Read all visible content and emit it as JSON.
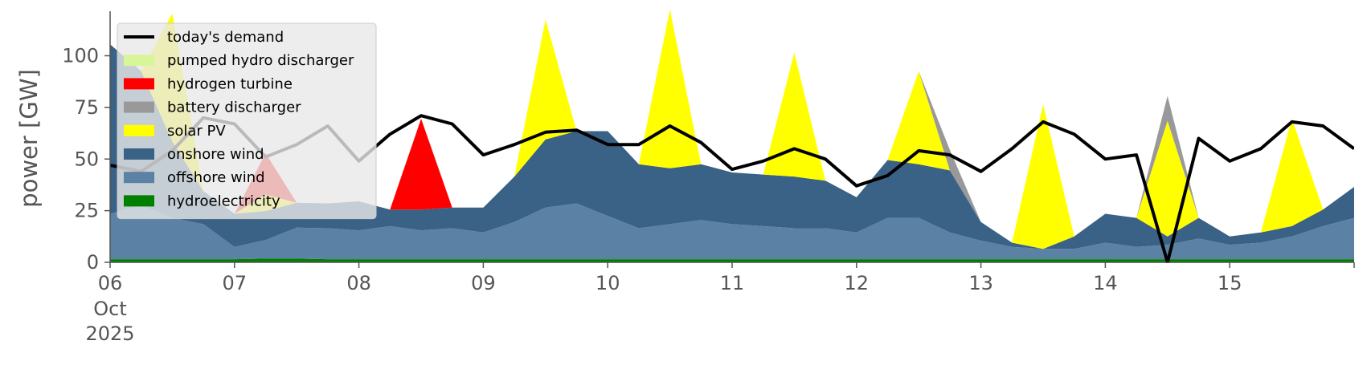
{
  "chart_data": {
    "type": "area",
    "title": "",
    "ylabel": "power [GW]",
    "xlabel": "",
    "ylim": [
      0,
      120
    ],
    "xlim": [
      0,
      240
    ],
    "y_ticks": [
      "0",
      "25",
      "50",
      "75",
      "100"
    ],
    "y_tick_values": [
      0,
      25,
      50,
      75,
      100
    ],
    "x_ticks": [
      {
        "label": "06",
        "sub1": "Oct",
        "sub2": "2025",
        "hour": 0
      },
      {
        "label": "07",
        "hour": 24
      },
      {
        "label": "08",
        "hour": 48
      },
      {
        "label": "09",
        "hour": 72
      },
      {
        "label": "10",
        "hour": 96
      },
      {
        "label": "11",
        "hour": 120
      },
      {
        "label": "12",
        "hour": 144
      },
      {
        "label": "13",
        "hour": 168
      },
      {
        "label": "14",
        "hour": 192
      },
      {
        "label": "15",
        "hour": 216
      }
    ],
    "legend_position": "upper-left",
    "grid": false,
    "x_hours": [
      0,
      6,
      12,
      18,
      24,
      30,
      36,
      42,
      48,
      54,
      60,
      66,
      72,
      78,
      84,
      90,
      96,
      102,
      108,
      114,
      120,
      126,
      132,
      138,
      144,
      150,
      156,
      162,
      168,
      174,
      180,
      186,
      192,
      198,
      204,
      210,
      216,
      222,
      228,
      234,
      240
    ],
    "series": [
      {
        "name": "hydroelectricity",
        "color": "#008000",
        "values": [
          1.5,
          1.5,
          1.5,
          1.5,
          1.5,
          1.8,
          1.8,
          1.5,
          1.5,
          1.5,
          1.5,
          1.5,
          1.5,
          1.5,
          1.5,
          1.5,
          1.5,
          1.5,
          1.5,
          1.5,
          1.5,
          1.5,
          1.5,
          1.5,
          1.5,
          1.5,
          1.5,
          1.5,
          1.5,
          1.5,
          1.5,
          1.5,
          1.5,
          1.5,
          1.5,
          1.5,
          1.5,
          1.5,
          1.5,
          1.5,
          1.5
        ]
      },
      {
        "name": "offshore wind",
        "color": "#5b82a5",
        "values": [
          22,
          26,
          20,
          17,
          6,
          9,
          15,
          15,
          14,
          16,
          14,
          15,
          13,
          18,
          25,
          27,
          21,
          15,
          17,
          19,
          17,
          16,
          15,
          15,
          13,
          20,
          20,
          13,
          9,
          6,
          5,
          5,
          8,
          6,
          7,
          10,
          7,
          8,
          11,
          16,
          20
        ]
      },
      {
        "name": "onshore wind",
        "color": "#3a6186",
        "values": [
          82,
          65,
          37,
          16,
          16,
          14,
          12,
          12,
          14,
          8,
          10,
          10,
          12,
          22,
          33,
          35,
          41,
          31,
          27,
          27,
          25,
          25,
          25,
          23,
          17,
          28,
          26,
          30,
          9,
          2,
          0,
          6,
          14,
          14,
          4,
          10,
          4,
          5,
          5,
          8,
          15
        ]
      },
      {
        "name": "solar PV",
        "color": "#ffff00",
        "values": [
          0,
          0,
          62,
          0,
          0,
          8,
          0,
          0,
          0,
          0,
          0,
          0,
          0,
          0,
          58,
          0,
          0,
          0,
          77,
          0,
          0,
          0,
          60,
          0,
          0,
          0,
          45,
          0,
          0,
          0,
          70,
          0,
          0,
          0,
          56,
          0,
          0,
          0,
          52,
          0,
          0
        ]
      },
      {
        "name": "battery discharger",
        "color": "#999999",
        "values": [
          0,
          0,
          0,
          0,
          0,
          0,
          0,
          0,
          0,
          0,
          0,
          0,
          0,
          0,
          0,
          0,
          0,
          0,
          0,
          0,
          0,
          0,
          0,
          0,
          0,
          0,
          0,
          10,
          0,
          0,
          0,
          0,
          0,
          0,
          12,
          0,
          0,
          0,
          0,
          0,
          0
        ]
      },
      {
        "name": "hydrogen turbine",
        "color": "#ff0000",
        "values": [
          0,
          0,
          0,
          0,
          0,
          20,
          0,
          0,
          0,
          0,
          44,
          0,
          0,
          0,
          0,
          0,
          0,
          0,
          0,
          0,
          0,
          0,
          0,
          0,
          0,
          0,
          0,
          0,
          0,
          0,
          0,
          0,
          0,
          0,
          0,
          0,
          0,
          0,
          0,
          0,
          0
        ]
      },
      {
        "name": "pumped hydro discharger",
        "color": "#d9f59a",
        "values": [
          0,
          0,
          0,
          0,
          0,
          0,
          0,
          0,
          0,
          0,
          0,
          0,
          0,
          0,
          0,
          0,
          0,
          0,
          0,
          0,
          0,
          0,
          0,
          0,
          0,
          0,
          0,
          0,
          0,
          0,
          0,
          0,
          0,
          0,
          0,
          0,
          0,
          0,
          0,
          0,
          0
        ]
      }
    ],
    "demand": {
      "name": "today's demand",
      "color": "#000000",
      "values": [
        47,
        44,
        54,
        70,
        67,
        51,
        57,
        66,
        49,
        62,
        71,
        67,
        52,
        57,
        63,
        64,
        57,
        57,
        66,
        58,
        45,
        49,
        55,
        50,
        37,
        42,
        54,
        52,
        44,
        55,
        68,
        62,
        50,
        52,
        0,
        60,
        49,
        55,
        68,
        66,
        55
      ]
    },
    "legend": [
      {
        "name": "today's demand",
        "color": "#000000",
        "kind": "line"
      },
      {
        "name": "pumped hydro discharger",
        "color": "#d9f59a",
        "kind": "patch"
      },
      {
        "name": "hydrogen turbine",
        "color": "#ff0000",
        "kind": "patch"
      },
      {
        "name": "battery discharger",
        "color": "#999999",
        "kind": "patch"
      },
      {
        "name": "solar PV",
        "color": "#ffff00",
        "kind": "patch"
      },
      {
        "name": "onshore wind",
        "color": "#3a6186",
        "kind": "patch"
      },
      {
        "name": "offshore wind",
        "color": "#5b82a5",
        "kind": "patch"
      },
      {
        "name": "hydroelectricity",
        "color": "#008000",
        "kind": "patch"
      }
    ]
  }
}
